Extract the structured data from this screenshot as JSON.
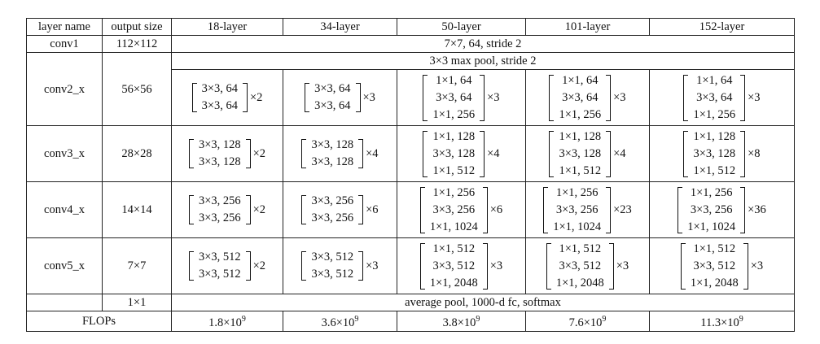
{
  "table": {
    "header": [
      "layer name",
      "output size",
      "18-layer",
      "34-layer",
      "50-layer",
      "101-layer",
      "152-layer"
    ],
    "rows": [
      {
        "name": "conv1",
        "output": "112×112",
        "merged": "7×7, 64, stride 2"
      },
      {
        "name": "conv2_x",
        "output": "56×56",
        "pre": "3×3 max pool, stride 2",
        "blocks": [
          {
            "lines": [
              "3×3, 64",
              "3×3, 64"
            ],
            "times": "×2"
          },
          {
            "lines": [
              "3×3, 64",
              "3×3, 64"
            ],
            "times": "×3"
          },
          {
            "lines": [
              "1×1, 64",
              "3×3, 64",
              "1×1, 256"
            ],
            "times": "×3"
          },
          {
            "lines": [
              "1×1, 64",
              "3×3, 64",
              "1×1, 256"
            ],
            "times": "×3"
          },
          {
            "lines": [
              "1×1, 64",
              "3×3, 64",
              "1×1, 256"
            ],
            "times": "×3"
          }
        ]
      },
      {
        "name": "conv3_x",
        "output": "28×28",
        "blocks": [
          {
            "lines": [
              "3×3, 128",
              "3×3, 128"
            ],
            "times": "×2"
          },
          {
            "lines": [
              "3×3, 128",
              "3×3, 128"
            ],
            "times": "×4"
          },
          {
            "lines": [
              "1×1, 128",
              "3×3, 128",
              "1×1, 512"
            ],
            "times": "×4"
          },
          {
            "lines": [
              "1×1, 128",
              "3×3, 128",
              "1×1, 512"
            ],
            "times": "×4"
          },
          {
            "lines": [
              "1×1, 128",
              "3×3, 128",
              "1×1, 512"
            ],
            "times": "×8"
          }
        ]
      },
      {
        "name": "conv4_x",
        "output": "14×14",
        "blocks": [
          {
            "lines": [
              "3×3, 256",
              "3×3, 256"
            ],
            "times": "×2"
          },
          {
            "lines": [
              "3×3, 256",
              "3×3, 256"
            ],
            "times": "×6"
          },
          {
            "lines": [
              "1×1, 256",
              "3×3, 256",
              "1×1, 1024"
            ],
            "times": "×6"
          },
          {
            "lines": [
              "1×1, 256",
              "3×3, 256",
              "1×1, 1024"
            ],
            "times": "×23"
          },
          {
            "lines": [
              "1×1, 256",
              "3×3, 256",
              "1×1, 1024"
            ],
            "times": "×36"
          }
        ]
      },
      {
        "name": "conv5_x",
        "output": "7×7",
        "blocks": [
          {
            "lines": [
              "3×3, 512",
              "3×3, 512"
            ],
            "times": "×2"
          },
          {
            "lines": [
              "3×3, 512",
              "3×3, 512"
            ],
            "times": "×3"
          },
          {
            "lines": [
              "1×1, 512",
              "3×3, 512",
              "1×1, 2048"
            ],
            "times": "×3"
          },
          {
            "lines": [
              "1×1, 512",
              "3×3, 512",
              "1×1, 2048"
            ],
            "times": "×3"
          },
          {
            "lines": [
              "1×1, 512",
              "3×3, 512",
              "1×1, 2048"
            ],
            "times": "×3"
          }
        ]
      },
      {
        "output": "1×1",
        "merged": "average pool, 1000-d fc, softmax"
      },
      {
        "name": "FLOPs",
        "flops": [
          {
            "base": "1.8×10",
            "exp": "9"
          },
          {
            "base": "3.6×10",
            "exp": "9"
          },
          {
            "base": "3.8×10",
            "exp": "9"
          },
          {
            "base": "7.6×10",
            "exp": "9"
          },
          {
            "base": "11.3×10",
            "exp": "9"
          }
        ]
      }
    ]
  }
}
